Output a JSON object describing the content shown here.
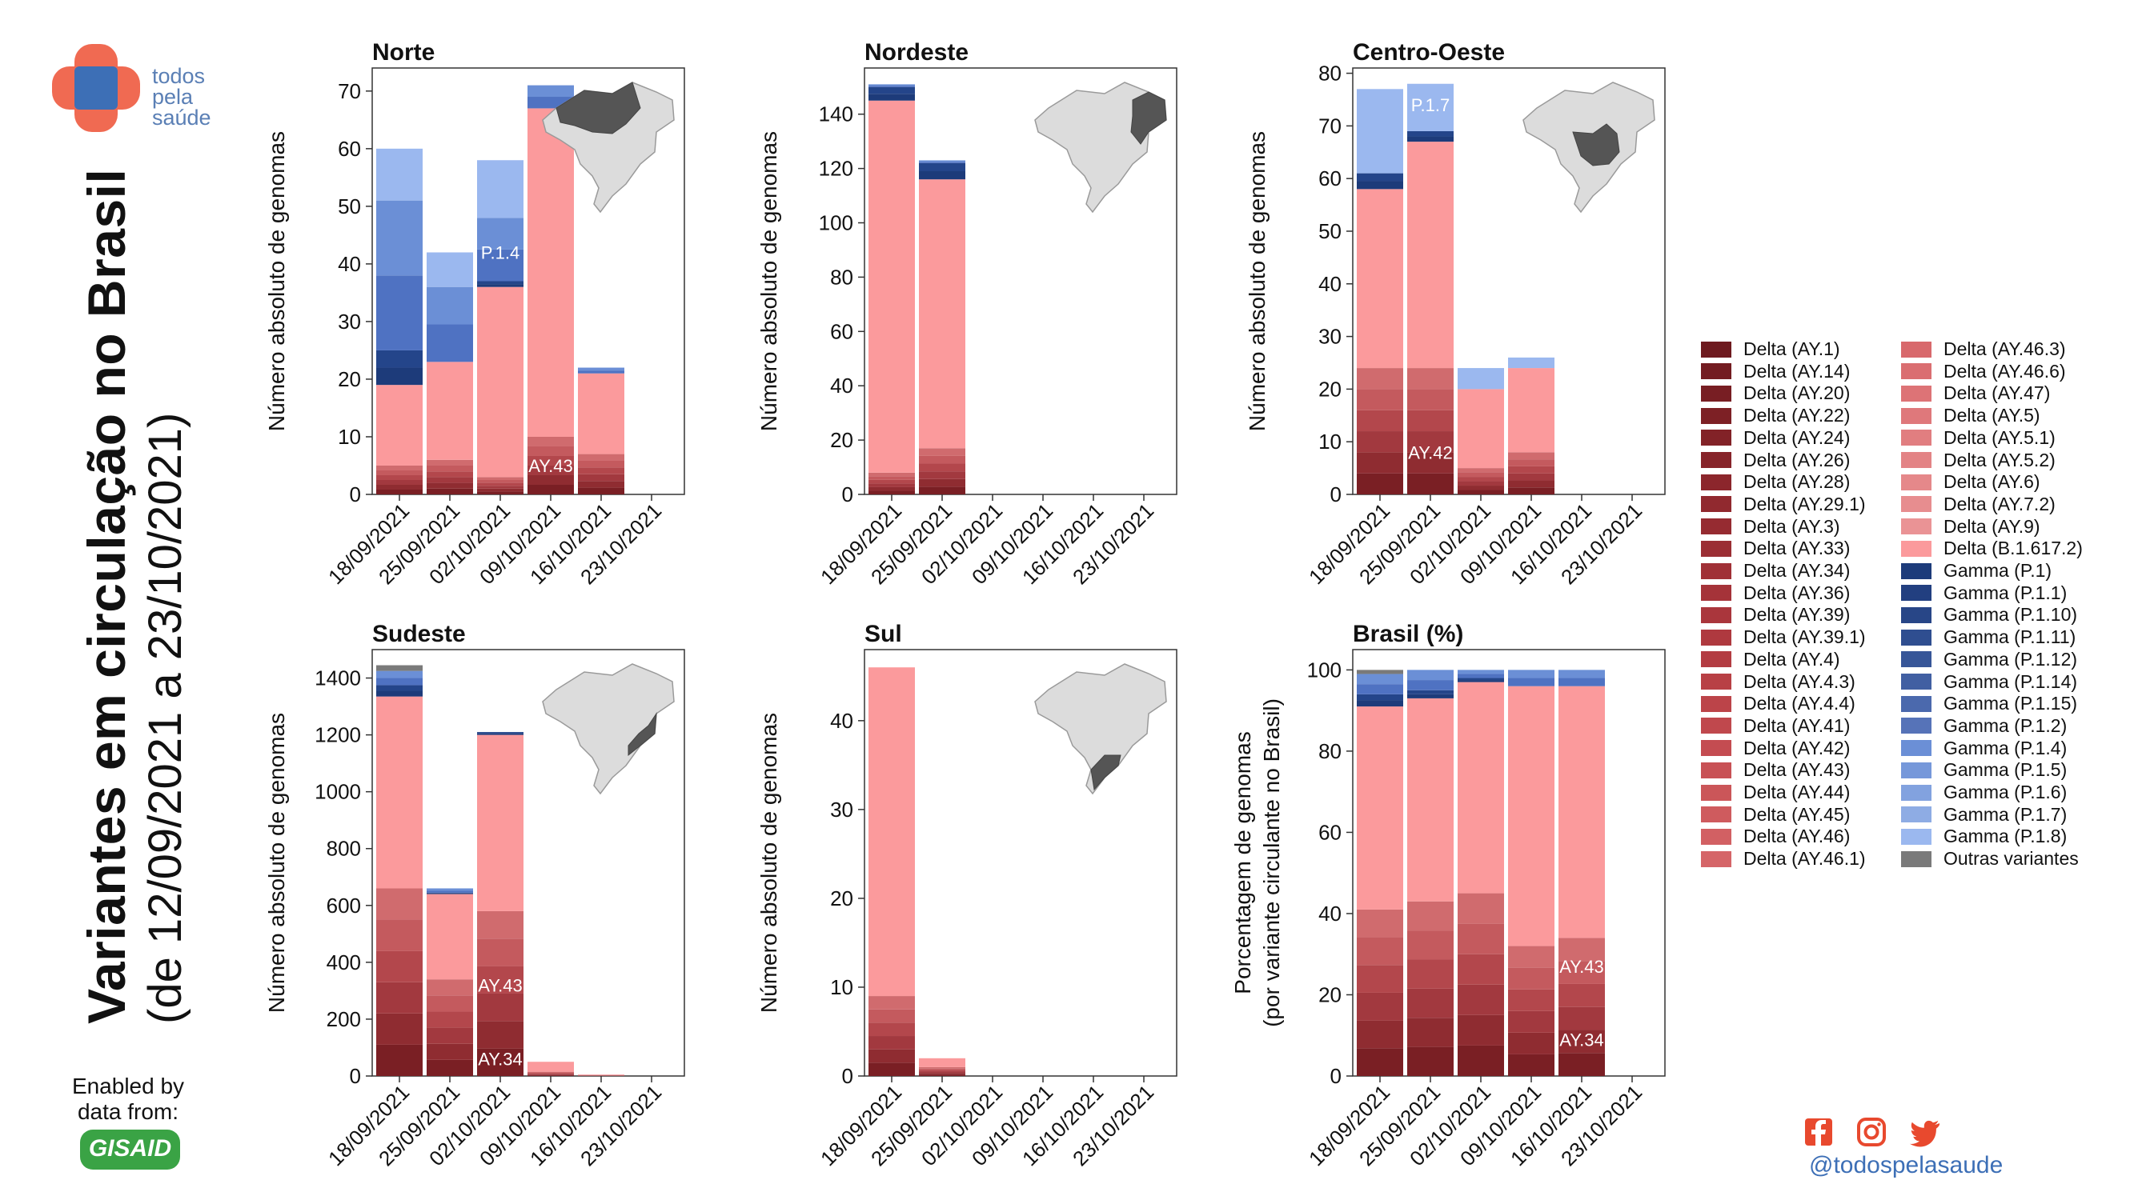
{
  "page": {
    "title_line1": "Variantes em circulação no Brasil",
    "title_line2": "(de 12/09/2021 a 23/10/2021)",
    "logo_text": [
      "todos",
      "pela",
      "saúde"
    ],
    "enabled_by": [
      "Enabled by",
      "data from:"
    ],
    "gisaid_label": "GISAID",
    "social_handle": "@todospelasaude",
    "icons": [
      "facebook-icon",
      "instagram-icon",
      "twitter-icon"
    ],
    "colors": {
      "logo_orange": "#f06a52",
      "logo_blue": "#3d6fb6",
      "twitter": "#e8492e",
      "facebook": "#e8492e",
      "instagram": "#e8492e",
      "handle": "#3d6fb6"
    }
  },
  "palette": {
    "delta_dark": "#7a1f24",
    "delta_mid": "#b3444a",
    "delta_light": "#d6707a",
    "delta_main": "#fb9a9c",
    "gamma_dark": "#1d3b7a",
    "gamma_mid": "#6b8fd6",
    "gamma_light": "#9bb8ef",
    "other": "#7a7a7a"
  },
  "legend": {
    "col1": [
      "Delta (AY.1)",
      "Delta (AY.14)",
      "Delta (AY.20)",
      "Delta (AY.22)",
      "Delta (AY.24)",
      "Delta (AY.26)",
      "Delta (AY.28)",
      "Delta (AY.29.1)",
      "Delta (AY.3)",
      "Delta (AY.33)",
      "Delta (AY.34)",
      "Delta (AY.36)",
      "Delta (AY.39)",
      "Delta (AY.39.1)",
      "Delta (AY.4)",
      "Delta (AY.4.3)",
      "Delta (AY.4.4)",
      "Delta (AY.41)",
      "Delta (AY.42)",
      "Delta (AY.43)",
      "Delta (AY.44)",
      "Delta (AY.45)",
      "Delta (AY.46)",
      "Delta (AY.46.1)"
    ],
    "col2": [
      "Delta (AY.46.3)",
      "Delta (AY.46.6)",
      "Delta (AY.47)",
      "Delta (AY.5)",
      "Delta (AY.5.1)",
      "Delta (AY.5.2)",
      "Delta (AY.6)",
      "Delta (AY.7.2)",
      "Delta (AY.9)",
      "Delta (B.1.617.2)",
      "Gamma (P.1)",
      "Gamma (P.1.1)",
      "Gamma (P.1.10)",
      "Gamma (P.1.11)",
      "Gamma (P.1.12)",
      "Gamma (P.1.14)",
      "Gamma (P.1.15)",
      "Gamma (P.1.2)",
      "Gamma (P.1.4)",
      "Gamma (P.1.5)",
      "Gamma (P.1.6)",
      "Gamma (P.1.7)",
      "Gamma (P.1.8)",
      "Outras variantes"
    ],
    "col1_colors": [
      "#6e1a1f",
      "#731c21",
      "#781e23",
      "#7d2025",
      "#822227",
      "#87242a",
      "#8c262c",
      "#91292f",
      "#962b31",
      "#9b2e34",
      "#a03036",
      "#a53339",
      "#aa363c",
      "#af393f",
      "#b33c42",
      "#b84045",
      "#bc4449",
      "#c0484d",
      "#c44c51",
      "#c85155",
      "#cb5659",
      "#cf5b5e",
      "#d26063",
      "#d56568"
    ],
    "col2_colors": [
      "#d8696c",
      "#da6e71",
      "#dd7376",
      "#df787b",
      "#e17e80",
      "#e38385",
      "#e5888a",
      "#e78d8f",
      "#ea9395",
      "#fb9a9c",
      "#1d3b7a",
      "#223f80",
      "#284687",
      "#2f4e90",
      "#375698",
      "#415fa2",
      "#4b69ad",
      "#5673b8",
      "#6b8fd6",
      "#7698da",
      "#82a2df",
      "#8eace4",
      "#9bb8ef",
      "#7a7a7a"
    ]
  },
  "chart_data": [
    {
      "id": "norte",
      "type": "bar",
      "stacked": true,
      "title": "Norte",
      "ylabel": "Número absoluto de genomas",
      "ylim": [
        0,
        74
      ],
      "yticks": [
        0,
        10,
        20,
        30,
        40,
        50,
        60,
        70
      ],
      "categories": [
        "18/09/2021",
        "25/09/2021",
        "02/10/2021",
        "09/10/2021",
        "16/10/2021",
        "23/10/2021"
      ],
      "map_region": "norte",
      "series": [
        {
          "group": "delta_dark",
          "values": [
            5,
            6,
            3,
            10,
            7,
            0
          ]
        },
        {
          "group": "delta_main",
          "values": [
            14,
            17,
            33,
            57,
            14,
            0
          ]
        },
        {
          "group": "gamma_dark",
          "values": [
            6,
            0,
            1,
            0,
            0,
            0
          ]
        },
        {
          "group": "gamma_mid",
          "values": [
            26,
            13,
            11,
            4,
            1,
            0
          ]
        },
        {
          "group": "gamma_light",
          "values": [
            9,
            6,
            10,
            0,
            0,
            0
          ]
        }
      ],
      "annotations": [
        {
          "category": "02/10/2021",
          "y": 42,
          "text": "P.1.4"
        },
        {
          "category": "09/10/2021",
          "y": 5,
          "text": "AY.43"
        }
      ]
    },
    {
      "id": "nordeste",
      "type": "bar",
      "stacked": true,
      "title": "Nordeste",
      "ylabel": "Número absoluto de genomas",
      "ylim": [
        0,
        157
      ],
      "yticks": [
        0,
        20,
        40,
        60,
        80,
        100,
        120,
        140
      ],
      "categories": [
        "18/09/2021",
        "25/09/2021",
        "02/10/2021",
        "09/10/2021",
        "16/10/2021",
        "23/10/2021"
      ],
      "map_region": "nordeste",
      "series": [
        {
          "group": "delta_dark",
          "values": [
            8,
            17,
            0,
            0,
            0,
            0
          ]
        },
        {
          "group": "delta_main",
          "values": [
            137,
            99,
            0,
            0,
            0,
            0
          ]
        },
        {
          "group": "gamma_dark",
          "values": [
            5,
            6,
            0,
            0,
            0,
            0
          ]
        },
        {
          "group": "gamma_mid",
          "values": [
            1,
            1,
            0,
            0,
            0,
            0
          ]
        }
      ],
      "annotations": []
    },
    {
      "id": "centro-oeste",
      "type": "bar",
      "stacked": true,
      "title": "Centro-Oeste",
      "ylabel": "Número absoluto de genomas",
      "ylim": [
        0,
        81
      ],
      "yticks": [
        0,
        10,
        20,
        30,
        40,
        50,
        60,
        70,
        80
      ],
      "categories": [
        "18/09/2021",
        "25/09/2021",
        "02/10/2021",
        "09/10/2021",
        "16/10/2021",
        "23/10/2021"
      ],
      "map_region": "centro-oeste",
      "series": [
        {
          "group": "delta_dark",
          "values": [
            24,
            24,
            5,
            8,
            0,
            0
          ]
        },
        {
          "group": "delta_main",
          "values": [
            34,
            43,
            15,
            16,
            0,
            0
          ]
        },
        {
          "group": "gamma_dark",
          "values": [
            3,
            2,
            0,
            0,
            0,
            0
          ]
        },
        {
          "group": "gamma_light",
          "values": [
            16,
            9,
            4,
            2,
            0,
            0
          ]
        }
      ],
      "annotations": [
        {
          "category": "25/09/2021",
          "y": 74,
          "text": "P.1.7"
        },
        {
          "category": "25/09/2021",
          "y": 8,
          "text": "AY.42"
        }
      ]
    },
    {
      "id": "sudeste",
      "type": "bar",
      "stacked": true,
      "title": "Sudeste",
      "ylabel": "Número absoluto de genomas",
      "ylim": [
        0,
        1500
      ],
      "yticks": [
        0,
        200,
        400,
        600,
        800,
        1000,
        1200,
        1400
      ],
      "categories": [
        "18/09/2021",
        "25/09/2021",
        "02/10/2021",
        "09/10/2021",
        "16/10/2021",
        "23/10/2021"
      ],
      "map_region": "sudeste",
      "series": [
        {
          "group": "delta_dark",
          "values": [
            660,
            340,
            580,
            15,
            2,
            0
          ]
        },
        {
          "group": "delta_main",
          "values": [
            675,
            300,
            620,
            35,
            3,
            0
          ]
        },
        {
          "group": "gamma_dark",
          "values": [
            40,
            5,
            10,
            0,
            0,
            0
          ]
        },
        {
          "group": "gamma_mid",
          "values": [
            50,
            15,
            0,
            0,
            0,
            0
          ]
        },
        {
          "group": "other",
          "values": [
            20,
            0,
            0,
            0,
            0,
            0
          ]
        }
      ],
      "annotations": [
        {
          "category": "02/10/2021",
          "y": 320,
          "text": "AY.43"
        },
        {
          "category": "02/10/2021",
          "y": 60,
          "text": "AY.34"
        }
      ]
    },
    {
      "id": "sul",
      "type": "bar",
      "stacked": true,
      "title": "Sul",
      "ylabel": "Número absoluto de genomas",
      "ylim": [
        0,
        48
      ],
      "yticks": [
        0,
        10,
        20,
        30,
        40
      ],
      "categories": [
        "18/09/2021",
        "25/09/2021",
        "02/10/2021",
        "09/10/2021",
        "16/10/2021",
        "23/10/2021"
      ],
      "map_region": "sul",
      "series": [
        {
          "group": "delta_dark",
          "values": [
            9,
            1,
            0,
            0,
            0,
            0
          ]
        },
        {
          "group": "delta_main",
          "values": [
            37,
            1,
            0,
            0,
            0,
            0
          ]
        }
      ],
      "annotations": []
    },
    {
      "id": "brasil",
      "type": "bar",
      "stacked": true,
      "title": "Brasil (%)",
      "ylabel": "Porcentagem de genomas",
      "ylabel2": "(por variante circulante no Brasil)",
      "ylim": [
        0,
        105
      ],
      "yticks": [
        0,
        20,
        40,
        60,
        80,
        100
      ],
      "categories": [
        "18/09/2021",
        "25/09/2021",
        "02/10/2021",
        "09/10/2021",
        "16/10/2021",
        "23/10/2021"
      ],
      "map_region": "",
      "series": [
        {
          "group": "delta_dark",
          "values": [
            41,
            43,
            45,
            32,
            34,
            0
          ]
        },
        {
          "group": "delta_main",
          "values": [
            50,
            50,
            52,
            64,
            62,
            0
          ]
        },
        {
          "group": "gamma_dark",
          "values": [
            3,
            2,
            1,
            0,
            0,
            0
          ]
        },
        {
          "group": "gamma_mid",
          "values": [
            5,
            5,
            2,
            4,
            4,
            0
          ]
        },
        {
          "group": "other",
          "values": [
            1,
            0,
            0,
            0,
            0,
            0
          ]
        }
      ],
      "annotations": [
        {
          "category": "16/10/2021",
          "y": 27,
          "text": "AY.43"
        },
        {
          "category": "16/10/2021",
          "y": 9,
          "text": "AY.34"
        }
      ]
    }
  ]
}
